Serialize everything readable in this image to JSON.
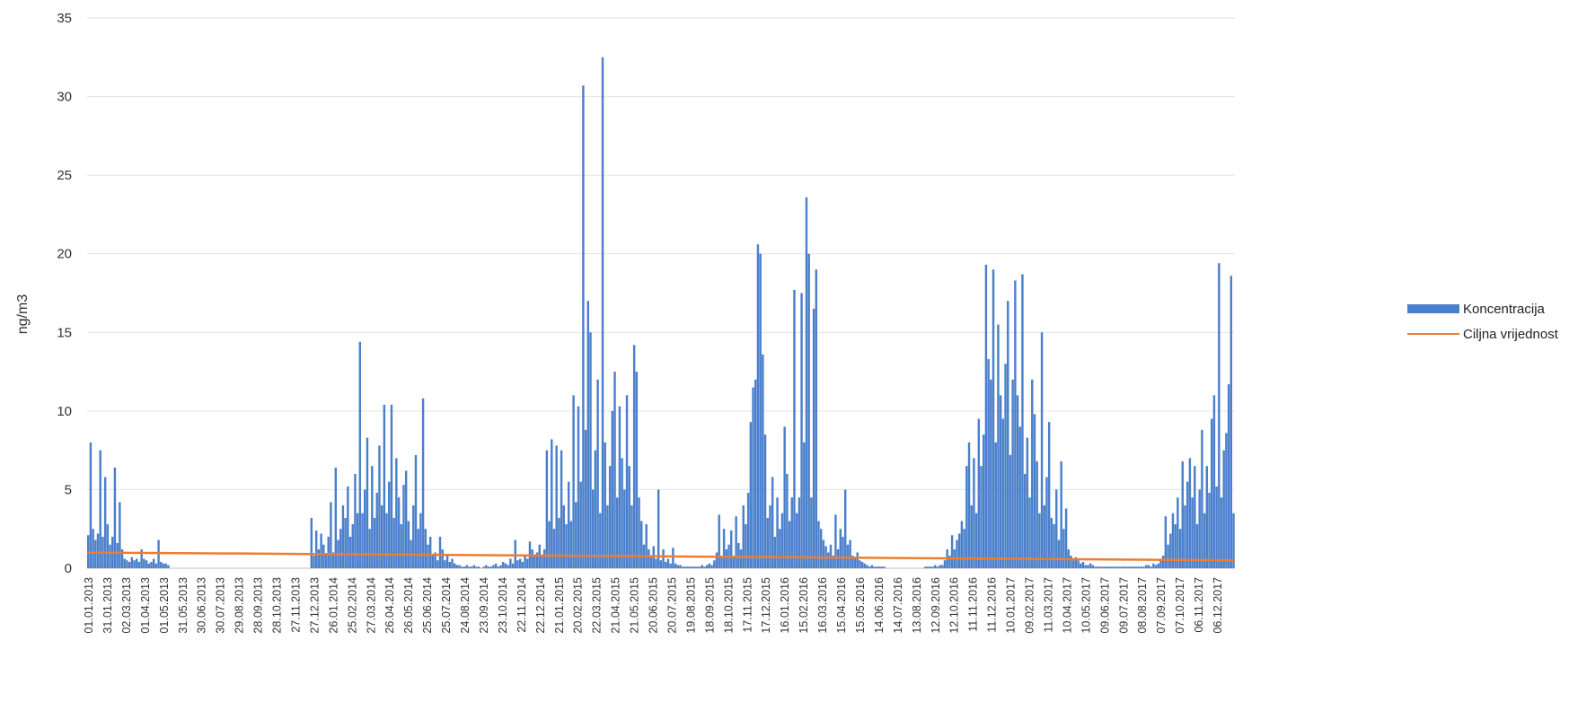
{
  "chart_data": {
    "type": "bar",
    "ylabel": "ng/m3",
    "ylim": [
      0,
      35
    ],
    "yticks": [
      0,
      5,
      10,
      15,
      20,
      25,
      30,
      35
    ],
    "grid": true,
    "legend_position": "right",
    "x_tick_labels": [
      "01.01.2013",
      "31.01.2013",
      "02.03.2013",
      "01.04.2013",
      "01.05.2013",
      "31.05.2013",
      "30.06.2013",
      "30.07.2013",
      "29.08.2013",
      "28.09.2013",
      "28.10.2013",
      "27.11.2013",
      "27.12.2013",
      "26.01.2014",
      "25.02.2014",
      "27.03.2014",
      "26.04.2014",
      "26.05.2014",
      "25.06.2014",
      "25.07.2014",
      "24.08.2014",
      "23.09.2014",
      "23.10.2014",
      "22.11.2014",
      "22.12.2014",
      "21.01.2015",
      "20.02.2015",
      "22.03.2015",
      "21.04.2015",
      "21.05.2015",
      "20.06.2015",
      "20.07.2015",
      "19.08.2015",
      "18.09.2015",
      "18.10.2015",
      "17.11.2015",
      "17.12.2015",
      "16.01.2016",
      "15.02.2016",
      "16.03.2016",
      "15.04.2016",
      "15.05.2016",
      "14.06.2016",
      "14.07.2016",
      "13.08.2016",
      "12.09.2016",
      "12.10.2016",
      "11.11.2016",
      "11.12.2016",
      "10.01.2017",
      "09.02.2017",
      "11.03.2017",
      "10.04.2017",
      "10.05.2017",
      "09.06.2017",
      "09.07.2017",
      "08.08.2017",
      "07.09.2017",
      "07.10.2017",
      "06.11.2017",
      "06.12.2017"
    ],
    "series": [
      {
        "name": "Koncentracija",
        "kind": "bar",
        "color": "#4a7fcb",
        "values": [
          2.1,
          8.0,
          2.5,
          1.8,
          2.2,
          7.5,
          2.0,
          5.8,
          2.8,
          1.5,
          2.0,
          6.4,
          1.6,
          4.2,
          1.2,
          0.6,
          0.5,
          0.4,
          0.7,
          0.5,
          0.6,
          0.4,
          1.2,
          0.6,
          0.5,
          0.3,
          0.4,
          0.6,
          0.3,
          1.8,
          0.4,
          0.3,
          0.3,
          0.2,
          0,
          0,
          0,
          0,
          0,
          0,
          0,
          0,
          0,
          0,
          0,
          0,
          0,
          0,
          0,
          0,
          0,
          0,
          0,
          0,
          0,
          0,
          0,
          0,
          0,
          0,
          0,
          0,
          0,
          0,
          0,
          0,
          0,
          0,
          0,
          0,
          0,
          0,
          0,
          0,
          0,
          0,
          0,
          0,
          0,
          0,
          0,
          0,
          0,
          0,
          0,
          0,
          0,
          0,
          0,
          0,
          0,
          0,
          3.2,
          0.8,
          2.4,
          1.2,
          2.2,
          1.5,
          0.9,
          2.0,
          4.2,
          1.0,
          6.4,
          1.8,
          2.5,
          4.0,
          3.2,
          5.2,
          2.0,
          2.8,
          6.0,
          3.5,
          14.4,
          3.5,
          5.0,
          8.3,
          2.5,
          6.5,
          3.2,
          4.8,
          7.8,
          4.0,
          10.4,
          3.5,
          5.5,
          10.4,
          3.2,
          7.0,
          4.5,
          2.8,
          5.3,
          6.2,
          3.0,
          1.8,
          4.0,
          7.2,
          2.5,
          3.5,
          10.8,
          2.5,
          1.5,
          2.0,
          0.8,
          1.0,
          0.5,
          2.0,
          1.2,
          0.5,
          0.8,
          0.4,
          0.6,
          0.3,
          0.2,
          0.2,
          0.1,
          0.1,
          0.2,
          0.1,
          0.1,
          0.2,
          0.1,
          0.1,
          0,
          0.1,
          0.2,
          0.1,
          0.1,
          0.2,
          0.3,
          0.1,
          0.2,
          0.4,
          0.3,
          0.2,
          0.6,
          0.3,
          1.8,
          0.5,
          0.6,
          0.4,
          0.8,
          0.6,
          1.7,
          1.2,
          0.8,
          1.0,
          1.5,
          0.8,
          1.2,
          7.5,
          3.0,
          8.2,
          2.5,
          7.8,
          3.2,
          7.5,
          4.0,
          2.8,
          5.5,
          3.0,
          11.0,
          4.2,
          10.3,
          5.5,
          30.7,
          8.8,
          17.0,
          15.0,
          5.0,
          7.5,
          12.0,
          3.5,
          32.5,
          8.0,
          4.0,
          6.5,
          10.0,
          12.5,
          4.5,
          10.3,
          7.0,
          5.0,
          11.0,
          6.5,
          4.0,
          14.2,
          12.5,
          4.5,
          3.0,
          1.5,
          2.8,
          1.2,
          0.8,
          1.4,
          0.6,
          5.0,
          0.5,
          1.2,
          0.4,
          0.6,
          0.3,
          1.3,
          0.3,
          0.2,
          0.2,
          0.1,
          0.1,
          0.1,
          0.1,
          0.1,
          0.1,
          0.1,
          0.1,
          0.2,
          0.1,
          0.2,
          0.3,
          0.2,
          0.5,
          1.0,
          3.4,
          0.8,
          2.5,
          1.2,
          1.5,
          2.4,
          0.8,
          3.3,
          1.6,
          1.2,
          4.0,
          2.8,
          4.8,
          9.3,
          11.5,
          12.0,
          20.6,
          20.0,
          13.6,
          8.5,
          3.2,
          4.0,
          5.8,
          2.0,
          4.5,
          2.5,
          3.5,
          9.0,
          6.0,
          3.0,
          4.5,
          17.7,
          3.5,
          4.5,
          17.5,
          8.0,
          23.6,
          20.0,
          4.5,
          16.5,
          19.0,
          3.0,
          2.5,
          1.8,
          1.4,
          1.0,
          1.5,
          0.8,
          3.4,
          1.2,
          2.5,
          2.0,
          5.0,
          1.5,
          1.8,
          0.8,
          0.6,
          1.0,
          0.5,
          0.4,
          0.3,
          0.2,
          0.1,
          0.2,
          0.1,
          0.1,
          0.1,
          0.1,
          0.1,
          0,
          0,
          0,
          0,
          0,
          0,
          0,
          0,
          0,
          0,
          0,
          0,
          0,
          0,
          0,
          0,
          0.1,
          0.1,
          0.1,
          0.1,
          0.2,
          0.1,
          0.2,
          0.2,
          0.5,
          1.2,
          0.8,
          2.1,
          1.2,
          1.8,
          2.2,
          3.0,
          2.5,
          6.5,
          8.0,
          4.0,
          7.0,
          3.5,
          9.5,
          6.5,
          8.5,
          19.3,
          13.3,
          12.0,
          19.0,
          8.0,
          15.5,
          11.0,
          9.5,
          13.0,
          17.0,
          7.2,
          12.0,
          18.3,
          11.0,
          9.0,
          18.7,
          6.0,
          8.3,
          4.5,
          12.0,
          9.8,
          6.8,
          3.5,
          15.0,
          4.0,
          5.8,
          9.3,
          3.2,
          2.8,
          5.0,
          1.8,
          6.8,
          2.5,
          3.8,
          1.2,
          0.8,
          0.5,
          0.7,
          0.5,
          0.3,
          0.4,
          0.2,
          0.2,
          0.3,
          0.2,
          0.1,
          0.1,
          0.1,
          0.1,
          0.1,
          0.1,
          0.1,
          0.1,
          0.1,
          0.1,
          0.1,
          0.1,
          0.1,
          0.1,
          0.1,
          0.1,
          0.1,
          0.1,
          0.1,
          0.1,
          0.1,
          0.2,
          0.2,
          0.1,
          0.3,
          0.2,
          0.3,
          0.5,
          0.8,
          3.3,
          1.5,
          2.2,
          3.5,
          2.8,
          4.5,
          2.5,
          6.8,
          4.0,
          5.5,
          7.0,
          4.5,
          6.5,
          2.8,
          5.0,
          8.8,
          3.5,
          6.5,
          4.8,
          9.5,
          11.0,
          5.2,
          19.4,
          4.5,
          7.5,
          8.6,
          11.7,
          18.6,
          3.5
        ]
      },
      {
        "name": "Ciljna vrijednost",
        "kind": "line",
        "color": "#ed7d31",
        "values_start": 1.0,
        "values_end": 0.5
      }
    ],
    "legend": {
      "bar_label": "Koncentracija",
      "line_label": "Ciljna vrijednost"
    }
  },
  "colors": {
    "bar": "#4a7fcb",
    "line": "#ed7d31",
    "grid": "#e2e2e2",
    "axis": "#bdbdbd"
  }
}
